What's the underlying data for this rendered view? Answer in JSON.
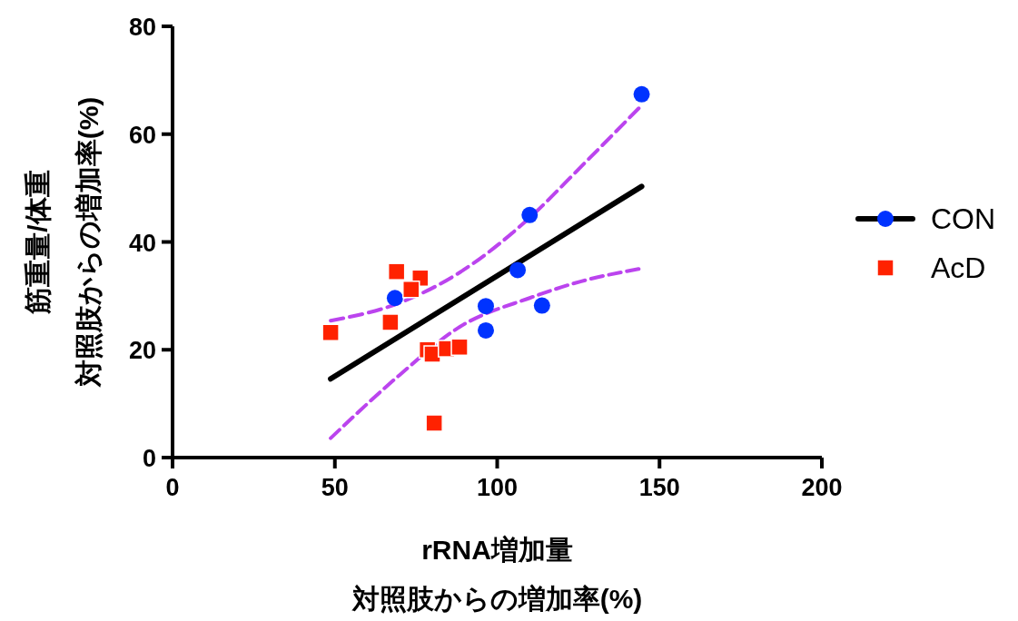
{
  "chart_data": {
    "type": "scatter",
    "xlabel": "rRNA増加量",
    "ylabel": "筋重量/体重",
    "annotations": [
      "対照肢からの増加率(%)",
      "対照肢からの増加率(%)"
    ],
    "xlim": [
      0,
      200
    ],
    "xticks": [
      0,
      50,
      100,
      150,
      200
    ],
    "ylim": [
      0,
      80
    ],
    "yticks": [
      0,
      20,
      40,
      60,
      80
    ],
    "grid": false,
    "legend": "right",
    "series": [
      {
        "name": "CON",
        "marker": "circle",
        "color": "#0033ff",
        "x": [
          144.5,
          110.0,
          106.3,
          96.5,
          96.5,
          113.8,
          68.5
        ],
        "values": [
          67.4,
          45.0,
          34.8,
          28.1,
          23.6,
          28.2,
          29.6
        ]
      },
      {
        "name": "AcD",
        "marker": "square",
        "color": "#ff2200",
        "x": [
          48.7,
          69.0,
          76.3,
          73.5,
          67.1,
          78.5,
          80.0,
          84.4,
          88.4,
          80.6
        ],
        "values": [
          23.2,
          34.5,
          33.3,
          31.2,
          25.1,
          20.0,
          19.2,
          20.2,
          20.5,
          6.4
        ]
      },
      {
        "type": "line",
        "line_style": "solid",
        "marker": "none",
        "color": "#000000",
        "x": [
          48.7,
          144.5
        ],
        "values": [
          14.6,
          50.3
        ]
      },
      {
        "type": "line",
        "line_style": "dashed",
        "marker": "none",
        "color": "#bb44ee",
        "x": [
          48.7,
          69.9,
          88.6,
          110,
          125.9,
          143.6
        ],
        "values": [
          25.4,
          28.7,
          34.4,
          44.5,
          54.0,
          64.8
        ]
      },
      {
        "type": "line",
        "line_style": "dashed",
        "marker": "none",
        "color": "#bb44ee",
        "x": [
          48.7,
          69.9,
          88.6,
          110,
          125.9,
          143.6
        ],
        "values": [
          3.6,
          15.3,
          24.3,
          29.6,
          32.7,
          35.0
        ]
      }
    ]
  }
}
